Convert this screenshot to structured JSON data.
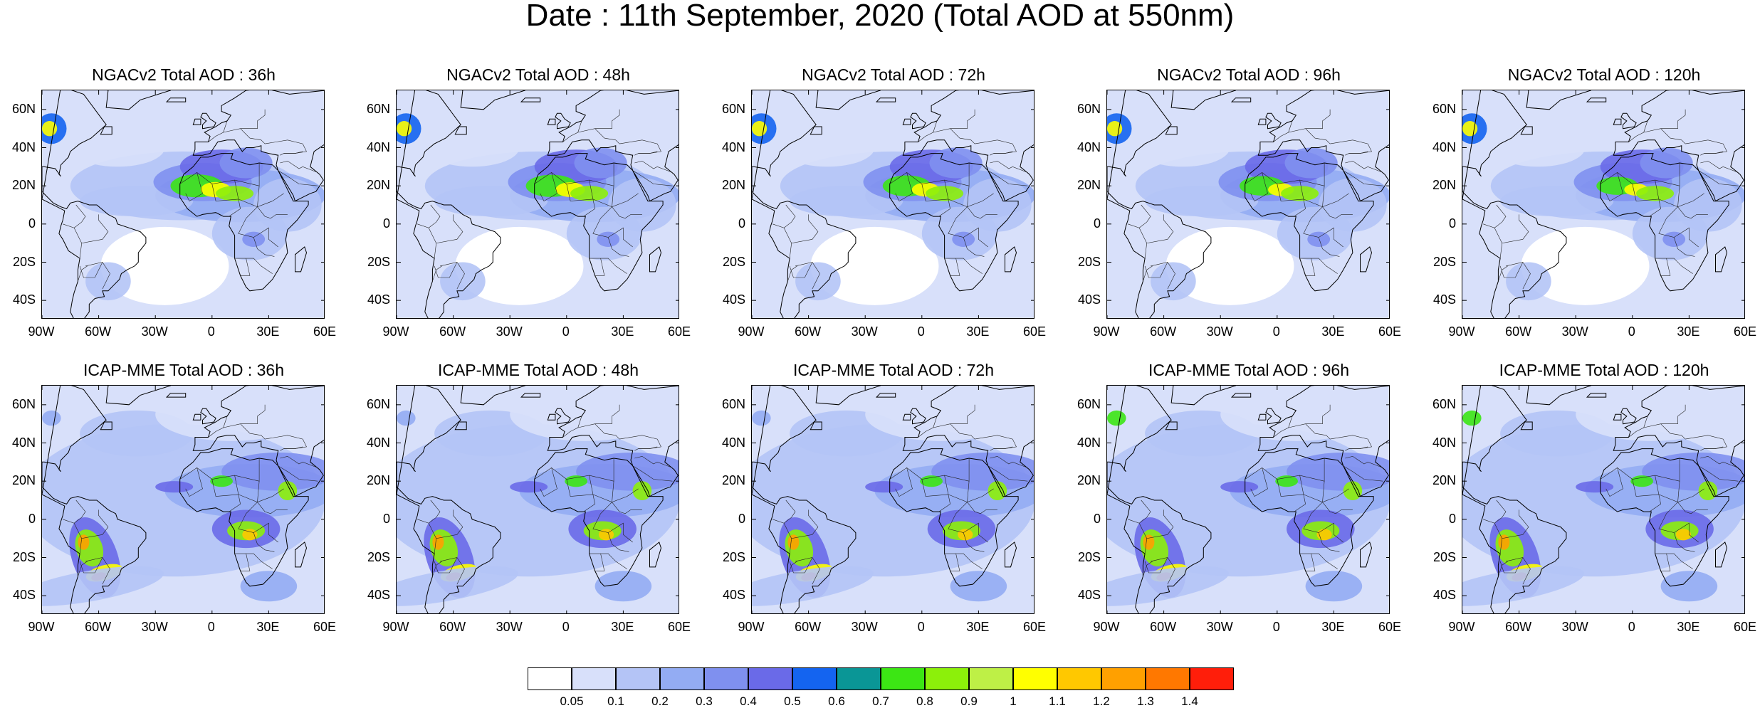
{
  "title": "Date : 11th September, 2020 (Total AOD at 550nm)",
  "lat_ticks": [
    "60N",
    "40N",
    "20N",
    "0",
    "20S",
    "40S"
  ],
  "lon_ticks": [
    "90W",
    "60W",
    "30W",
    "0",
    "30E",
    "60E"
  ],
  "map_extent": {
    "lon": [
      -90,
      60
    ],
    "lat": [
      -50,
      70
    ]
  },
  "panels": [
    {
      "title": "NGACv2 Total AOD : 36h",
      "model": "NGACv2",
      "lead_hours": 36
    },
    {
      "title": "NGACv2 Total AOD : 48h",
      "model": "NGACv2",
      "lead_hours": 48
    },
    {
      "title": "NGACv2 Total AOD : 72h",
      "model": "NGACv2",
      "lead_hours": 72
    },
    {
      "title": "NGACv2 Total AOD : 96h",
      "model": "NGACv2",
      "lead_hours": 96
    },
    {
      "title": "NGACv2 Total AOD : 120h",
      "model": "NGACv2",
      "lead_hours": 120
    },
    {
      "title": "ICAP-MME Total AOD : 36h",
      "model": "ICAP-MME",
      "lead_hours": 36
    },
    {
      "title": "ICAP-MME Total AOD : 48h",
      "model": "ICAP-MME",
      "lead_hours": 48
    },
    {
      "title": "ICAP-MME Total AOD : 72h",
      "model": "ICAP-MME",
      "lead_hours": 72
    },
    {
      "title": "ICAP-MME Total AOD : 96h",
      "model": "ICAP-MME",
      "lead_hours": 96
    },
    {
      "title": "ICAP-MME Total AOD : 120h",
      "model": "ICAP-MME",
      "lead_hours": 120
    }
  ],
  "colorbar": {
    "levels": [
      "0.05",
      "0.1",
      "0.2",
      "0.3",
      "0.4",
      "0.5",
      "0.6",
      "0.7",
      "0.8",
      "0.9",
      "1",
      "1.1",
      "1.2",
      "1.3",
      "1.4"
    ],
    "colors": [
      "#ffffff",
      "#d8e0fa",
      "#b4c4f6",
      "#93acf3",
      "#7f90ef",
      "#6a6ae8",
      "#1464f0",
      "#0a9696",
      "#3ce614",
      "#8cf00a",
      "#bef046",
      "#ffff00",
      "#ffc800",
      "#ffa000",
      "#ff7800",
      "#ff1e0a"
    ]
  }
}
